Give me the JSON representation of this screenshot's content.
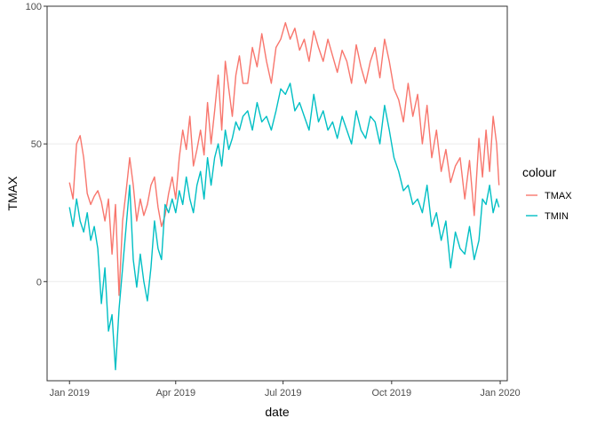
{
  "chart_data": {
    "type": "line",
    "xlabel": "date",
    "ylabel": "TMAX",
    "x_ticks": [
      "Jan 2019",
      "Apr 2019",
      "Jul 2019",
      "Oct 2019",
      "Jan 2020"
    ],
    "y_ticks": [
      0,
      50,
      100
    ],
    "xlim": [
      "2018-12-13",
      "2020-01-07"
    ],
    "ylim": [
      -36,
      100
    ],
    "grid": true,
    "legend": {
      "title": "colour",
      "position": "right",
      "entries": [
        "TMAX",
        "TMIN"
      ]
    },
    "colors": {
      "TMAX": "#F8766D",
      "TMIN": "#00BFC4"
    },
    "series": [
      {
        "name": "TMAX",
        "x": [
          "2019-01-01",
          "2019-01-04",
          "2019-01-07",
          "2019-01-10",
          "2019-01-13",
          "2019-01-16",
          "2019-01-19",
          "2019-01-22",
          "2019-01-25",
          "2019-01-28",
          "2019-01-31",
          "2019-02-03",
          "2019-02-06",
          "2019-02-09",
          "2019-02-12",
          "2019-02-15",
          "2019-02-18",
          "2019-02-21",
          "2019-02-24",
          "2019-02-27",
          "2019-03-02",
          "2019-03-05",
          "2019-03-08",
          "2019-03-11",
          "2019-03-14",
          "2019-03-17",
          "2019-03-20",
          "2019-03-23",
          "2019-03-26",
          "2019-03-29",
          "2019-04-01",
          "2019-04-04",
          "2019-04-07",
          "2019-04-10",
          "2019-04-13",
          "2019-04-16",
          "2019-04-19",
          "2019-04-22",
          "2019-04-25",
          "2019-04-28",
          "2019-05-01",
          "2019-05-04",
          "2019-05-07",
          "2019-05-10",
          "2019-05-13",
          "2019-05-16",
          "2019-05-19",
          "2019-05-22",
          "2019-05-25",
          "2019-05-28",
          "2019-06-01",
          "2019-06-05",
          "2019-06-09",
          "2019-06-13",
          "2019-06-17",
          "2019-06-21",
          "2019-06-25",
          "2019-06-29",
          "2019-07-03",
          "2019-07-07",
          "2019-07-11",
          "2019-07-15",
          "2019-07-19",
          "2019-07-23",
          "2019-07-27",
          "2019-07-31",
          "2019-08-04",
          "2019-08-08",
          "2019-08-12",
          "2019-08-16",
          "2019-08-20",
          "2019-08-24",
          "2019-08-28",
          "2019-09-01",
          "2019-09-05",
          "2019-09-09",
          "2019-09-13",
          "2019-09-17",
          "2019-09-21",
          "2019-09-25",
          "2019-09-29",
          "2019-10-03",
          "2019-10-07",
          "2019-10-11",
          "2019-10-15",
          "2019-10-19",
          "2019-10-23",
          "2019-10-27",
          "2019-10-31",
          "2019-11-04",
          "2019-11-08",
          "2019-11-12",
          "2019-11-16",
          "2019-11-20",
          "2019-11-24",
          "2019-11-28",
          "2019-12-02",
          "2019-12-06",
          "2019-12-10",
          "2019-12-14",
          "2019-12-17",
          "2019-12-20",
          "2019-12-23",
          "2019-12-26",
          "2019-12-29",
          "2019-12-31"
        ],
        "values": [
          36,
          30,
          50,
          53,
          45,
          32,
          28,
          31,
          33,
          29,
          22,
          30,
          10,
          28,
          -5,
          22,
          33,
          45,
          35,
          22,
          30,
          24,
          28,
          35,
          38,
          27,
          20,
          24,
          32,
          38,
          30,
          45,
          55,
          48,
          60,
          42,
          48,
          55,
          46,
          65,
          50,
          62,
          75,
          55,
          80,
          70,
          60,
          75,
          82,
          72,
          72,
          85,
          78,
          90,
          80,
          72,
          85,
          88,
          94,
          88,
          92,
          84,
          88,
          80,
          91,
          85,
          80,
          88,
          82,
          76,
          84,
          80,
          72,
          86,
          78,
          72,
          80,
          85,
          74,
          88,
          80,
          70,
          66,
          58,
          72,
          60,
          68,
          50,
          64,
          45,
          55,
          40,
          48,
          36,
          42,
          45,
          30,
          44,
          24,
          52,
          38,
          55,
          40,
          60,
          50,
          35
        ]
      },
      {
        "name": "TMIN",
        "x": [
          "2019-01-01",
          "2019-01-04",
          "2019-01-07",
          "2019-01-10",
          "2019-01-13",
          "2019-01-16",
          "2019-01-19",
          "2019-01-22",
          "2019-01-25",
          "2019-01-28",
          "2019-01-31",
          "2019-02-03",
          "2019-02-06",
          "2019-02-09",
          "2019-02-12",
          "2019-02-15",
          "2019-02-18",
          "2019-02-21",
          "2019-02-24",
          "2019-02-27",
          "2019-03-02",
          "2019-03-05",
          "2019-03-08",
          "2019-03-11",
          "2019-03-14",
          "2019-03-17",
          "2019-03-20",
          "2019-03-23",
          "2019-03-26",
          "2019-03-29",
          "2019-04-01",
          "2019-04-04",
          "2019-04-07",
          "2019-04-10",
          "2019-04-13",
          "2019-04-16",
          "2019-04-19",
          "2019-04-22",
          "2019-04-25",
          "2019-04-28",
          "2019-05-01",
          "2019-05-04",
          "2019-05-07",
          "2019-05-10",
          "2019-05-13",
          "2019-05-16",
          "2019-05-19",
          "2019-05-22",
          "2019-05-25",
          "2019-05-28",
          "2019-06-01",
          "2019-06-05",
          "2019-06-09",
          "2019-06-13",
          "2019-06-17",
          "2019-06-21",
          "2019-06-25",
          "2019-06-29",
          "2019-07-03",
          "2019-07-07",
          "2019-07-11",
          "2019-07-15",
          "2019-07-19",
          "2019-07-23",
          "2019-07-27",
          "2019-07-31",
          "2019-08-04",
          "2019-08-08",
          "2019-08-12",
          "2019-08-16",
          "2019-08-20",
          "2019-08-24",
          "2019-08-28",
          "2019-09-01",
          "2019-09-05",
          "2019-09-09",
          "2019-09-13",
          "2019-09-17",
          "2019-09-21",
          "2019-09-25",
          "2019-09-29",
          "2019-10-03",
          "2019-10-07",
          "2019-10-11",
          "2019-10-15",
          "2019-10-19",
          "2019-10-23",
          "2019-10-27",
          "2019-10-31",
          "2019-11-04",
          "2019-11-08",
          "2019-11-12",
          "2019-11-16",
          "2019-11-20",
          "2019-11-24",
          "2019-11-28",
          "2019-12-02",
          "2019-12-06",
          "2019-12-10",
          "2019-12-14",
          "2019-12-17",
          "2019-12-20",
          "2019-12-23",
          "2019-12-26",
          "2019-12-29",
          "2019-12-31"
        ],
        "values": [
          27,
          20,
          30,
          22,
          18,
          25,
          15,
          20,
          12,
          -8,
          5,
          -18,
          -12,
          -32,
          -10,
          5,
          20,
          35,
          8,
          -2,
          10,
          0,
          -7,
          5,
          22,
          12,
          8,
          28,
          25,
          30,
          25,
          33,
          28,
          38,
          30,
          25,
          35,
          40,
          30,
          45,
          35,
          45,
          50,
          42,
          55,
          48,
          52,
          58,
          55,
          60,
          62,
          55,
          65,
          58,
          60,
          55,
          62,
          70,
          68,
          72,
          62,
          65,
          60,
          55,
          68,
          58,
          62,
          55,
          58,
          52,
          60,
          55,
          50,
          62,
          55,
          52,
          60,
          58,
          50,
          64,
          55,
          45,
          40,
          33,
          35,
          28,
          30,
          25,
          35,
          20,
          25,
          15,
          22,
          5,
          18,
          12,
          10,
          20,
          8,
          15,
          30,
          28,
          35,
          25,
          30,
          27
        ]
      }
    ]
  }
}
